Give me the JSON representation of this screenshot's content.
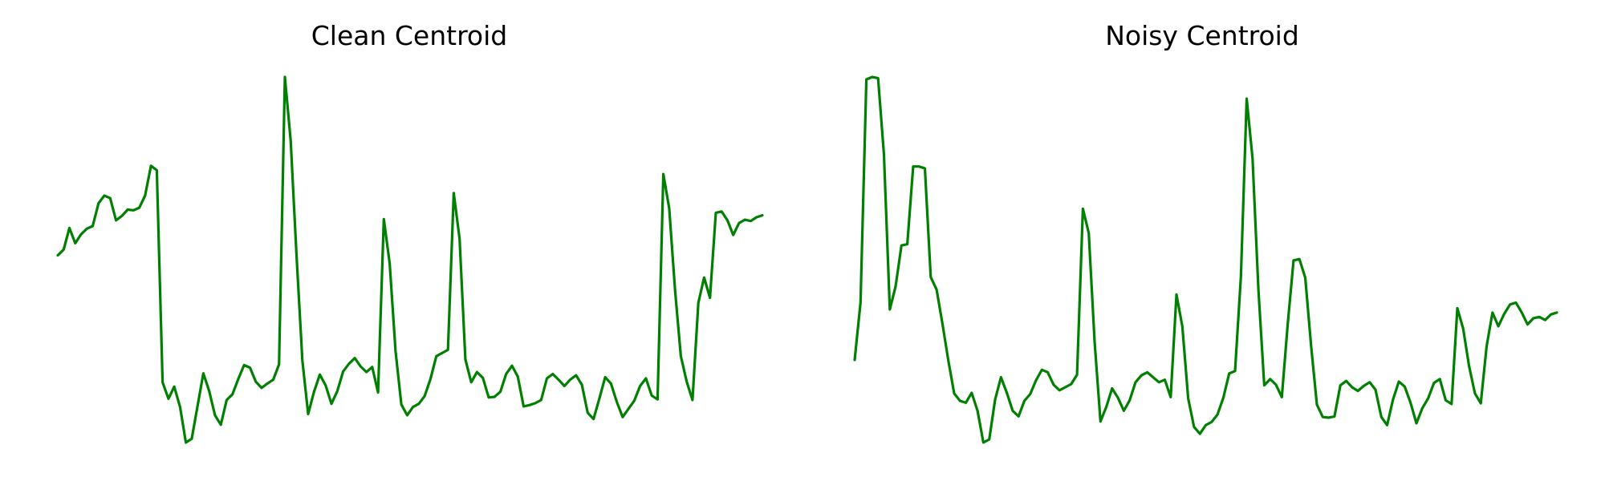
{
  "chart_data": [
    {
      "type": "line",
      "title": "Clean Centroid",
      "xlabel": "",
      "ylabel": "",
      "grid": false,
      "axes_visible": false,
      "series": [
        {
          "color": "#008000",
          "values": [
            1.55,
            1.64,
            1.98,
            1.74,
            1.88,
            1.97,
            2.01,
            2.37,
            2.49,
            2.45,
            2.1,
            2.17,
            2.27,
            2.26,
            2.3,
            2.49,
            2.96,
            2.89,
            -0.45,
            -0.71,
            -0.52,
            -0.84,
            -1.4,
            -1.34,
            -0.83,
            -0.31,
            -0.59,
            -0.97,
            -1.12,
            -0.73,
            -0.64,
            -0.4,
            -0.18,
            -0.22,
            -0.44,
            -0.54,
            -0.47,
            -0.41,
            -0.17,
            4.36,
            3.36,
            1.55,
            -0.11,
            -0.95,
            -0.6,
            -0.33,
            -0.5,
            -0.79,
            -0.59,
            -0.28,
            -0.16,
            -0.07,
            -0.2,
            -0.29,
            -0.21,
            -0.61,
            2.12,
            1.42,
            0.04,
            -0.8,
            -0.97,
            -0.84,
            -0.79,
            -0.67,
            -0.4,
            -0.04,
            0.01,
            0.06,
            2.53,
            1.81,
            -0.09,
            -0.45,
            -0.29,
            -0.38,
            -0.69,
            -0.68,
            -0.6,
            -0.32,
            -0.19,
            -0.36,
            -0.83,
            -0.81,
            -0.78,
            -0.73,
            -0.39,
            -0.32,
            -0.41,
            -0.51,
            -0.41,
            -0.34,
            -0.49,
            -0.93,
            -1.03,
            -0.71,
            -0.37,
            -0.47,
            -0.76,
            -1.0,
            -0.87,
            -0.74,
            -0.51,
            -0.39,
            -0.66,
            -0.72,
            2.83,
            2.29,
            1.0,
            -0.04,
            -0.44,
            -0.73,
            0.8,
            1.2,
            0.88,
            2.22,
            2.24,
            2.1,
            1.87,
            2.06,
            2.11,
            2.09,
            2.15,
            2.18
          ],
          "labels_shown": false
        }
      ]
    },
    {
      "type": "line",
      "title": "Noisy Centroid",
      "xlabel": "",
      "ylabel": "",
      "grid": false,
      "axes_visible": false,
      "series": [
        {
          "color": "#008000",
          "values": [
            0.4,
            1.32,
            4.91,
            4.95,
            4.93,
            3.7,
            1.21,
            1.58,
            2.24,
            2.26,
            3.51,
            3.51,
            3.48,
            1.73,
            1.53,
            0.98,
            0.39,
            -0.14,
            -0.26,
            -0.29,
            -0.13,
            -0.42,
            -0.93,
            -0.88,
            -0.24,
            0.12,
            -0.13,
            -0.42,
            -0.51,
            -0.26,
            -0.15,
            0.07,
            0.24,
            0.2,
            0.0,
            -0.09,
            -0.04,
            0.01,
            0.16,
            2.83,
            2.44,
            0.69,
            -0.59,
            -0.36,
            -0.06,
            -0.21,
            -0.42,
            -0.25,
            0.04,
            0.15,
            0.2,
            0.12,
            0.04,
            0.08,
            -0.2,
            1.45,
            0.94,
            -0.22,
            -0.68,
            -0.79,
            -0.65,
            -0.6,
            -0.48,
            -0.21,
            0.18,
            0.22,
            1.74,
            4.6,
            3.64,
            1.53,
            -0.01,
            0.09,
            0.0,
            -0.2,
            0.97,
            2.0,
            2.02,
            1.72,
            0.62,
            -0.32,
            -0.52,
            -0.53,
            -0.51,
            -0.01,
            0.06,
            -0.04,
            -0.1,
            -0.02,
            0.04,
            -0.08,
            -0.52,
            -0.65,
            -0.24,
            0.05,
            -0.03,
            -0.29,
            -0.62,
            -0.38,
            -0.22,
            0.03,
            0.09,
            -0.25,
            -0.31,
            1.23,
            0.9,
            0.3,
            -0.14,
            -0.3,
            0.62,
            1.16,
            0.94,
            1.14,
            1.29,
            1.32,
            1.16,
            0.97,
            1.07,
            1.09,
            1.04,
            1.13,
            1.16
          ]
        }
      ]
    }
  ]
}
